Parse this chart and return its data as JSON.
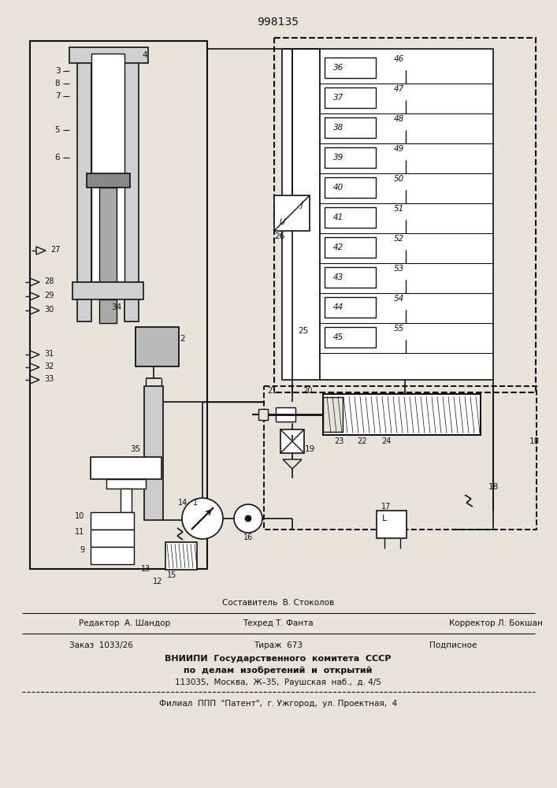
{
  "title": "998135",
  "bg_color": "#e8e4dc",
  "line_color": "#111111",
  "relay_left": [
    "36",
    "37",
    "38",
    "39",
    "40",
    "41",
    "42",
    "43",
    "44",
    "45"
  ],
  "relay_right": [
    "46",
    "47",
    "48",
    "49",
    "50",
    "51",
    "52",
    "53",
    "54",
    "55"
  ],
  "footer_line0": "Составитель  В. Стоколов",
  "footer_line1a": "Редактор  А. Шандор",
  "footer_line1b": "Техред Т. Фанта",
  "footer_line1c": "Корректор Л. Бокшан",
  "footer_line2a": "Заказ  1033/26",
  "footer_line2b": "Тираж  673",
  "footer_line2c": "Подписное",
  "footer_line3": "ВНИИПИ  Государственного  комитета  СССР",
  "footer_line4": "по  делам  изобретений  и  открытий",
  "footer_line5": "113035,  Москва,  Ж–35,  Раушская  наб.,  д. 4/5",
  "footer_line6": "Филиал  ППП  \"Патент\",  г. Ужгород,  ул. Проектная,  4"
}
